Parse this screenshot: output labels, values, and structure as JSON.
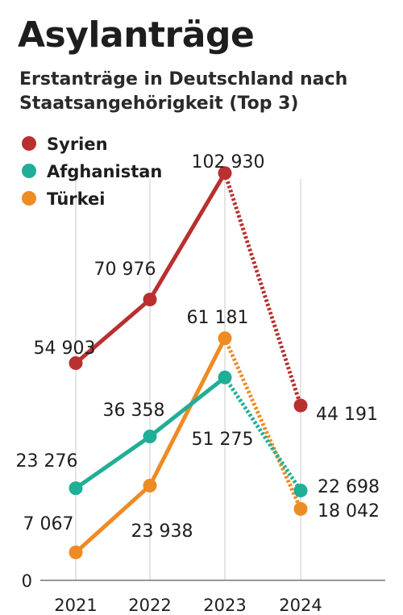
{
  "title": "Asylanträge",
  "subtitle_line1": "Erstanträge in Deutschland nach",
  "subtitle_line2": "Staatsangehörigkeit (Top 3)",
  "chart_data": {
    "type": "line",
    "title": "Asylanträge",
    "subtitle": "Erstanträge in Deutschland nach Staatsangehörigkeit (Top 3)",
    "categories": [
      "2021",
      "2022",
      "2023",
      "2024"
    ],
    "y_tick_labels": [
      "0"
    ],
    "ylim": [
      0,
      110000
    ],
    "grid": "vertical lines at each year",
    "legend_position": "top-left",
    "last_segment_style": "dotted",
    "series": [
      {
        "name": "Syrien",
        "color": "#b8302f",
        "values": [
          54903,
          70976,
          102930,
          44191
        ],
        "labels": [
          "54 903",
          "70 976",
          "102 930",
          "44 191"
        ]
      },
      {
        "name": "Afghanistan",
        "color": "#1fae96",
        "values": [
          23276,
          36358,
          51275,
          22698
        ],
        "labels": [
          "23 276",
          "36 358",
          "51 275",
          "22 698"
        ]
      },
      {
        "name": "Türkei",
        "color": "#ee8b23",
        "values": [
          7067,
          23938,
          61181,
          18042
        ],
        "labels": [
          "7 067",
          "23 938",
          "61 181",
          "18 042"
        ]
      }
    ]
  }
}
